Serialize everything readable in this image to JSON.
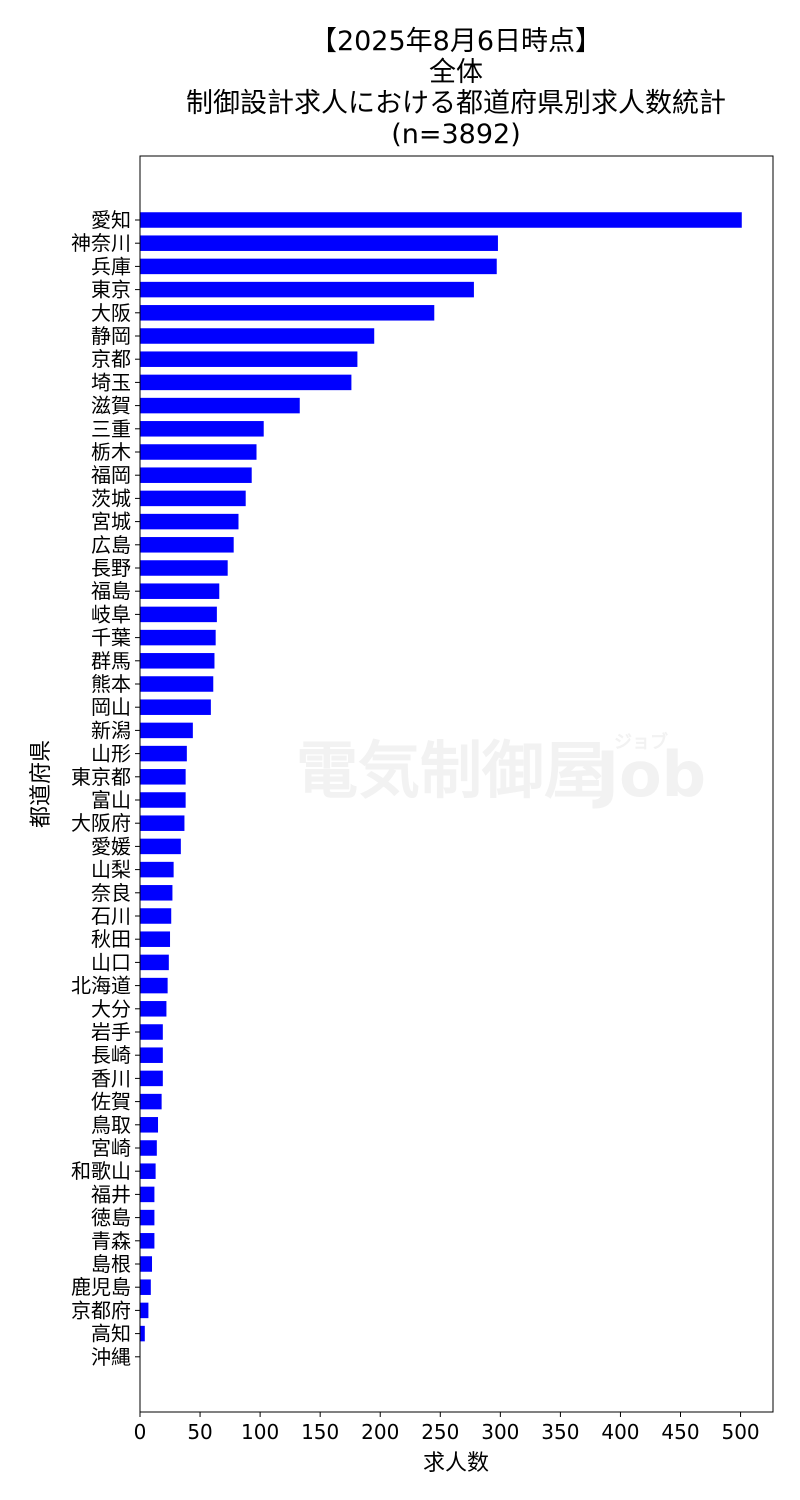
{
  "watermark": {
    "main": "電気制御屋",
    "job": "Job",
    "kana": "ジョブ"
  },
  "chart_data": {
    "type": "bar",
    "orientation": "horizontal",
    "title": [
      "【2025年8月6日時点】",
      "全体",
      "制御設計求人における都道府県別求人数統計",
      "(n=3892)"
    ],
    "xlabel": "求人数",
    "ylabel": "都道府県",
    "xlim": [
      0,
      527
    ],
    "xticks": [
      0,
      50,
      100,
      150,
      200,
      250,
      300,
      350,
      400,
      450,
      500
    ],
    "bar_color": "#0000ff",
    "grid": false,
    "categories": [
      "愛知",
      "神奈川",
      "兵庫",
      "東京",
      "大阪",
      "静岡",
      "京都",
      "埼玉",
      "滋賀",
      "三重",
      "栃木",
      "福岡",
      "茨城",
      "宮城",
      "広島",
      "長野",
      "福島",
      "岐阜",
      "千葉",
      "群馬",
      "熊本",
      "岡山",
      "新潟",
      "山形",
      "東京都",
      "富山",
      "大阪府",
      "愛媛",
      "山梨",
      "奈良",
      "石川",
      "秋田",
      "山口",
      "北海道",
      "大分",
      "岩手",
      "長崎",
      "香川",
      "佐賀",
      "鳥取",
      "宮崎",
      "和歌山",
      "福井",
      "徳島",
      "青森",
      "島根",
      "鹿児島",
      "京都府",
      "高知",
      "沖縄"
    ],
    "values": [
      501,
      298,
      297,
      278,
      245,
      195,
      181,
      176,
      133,
      103,
      97,
      93,
      88,
      82,
      78,
      73,
      66,
      64,
      63,
      62,
      61,
      59,
      44,
      39,
      38,
      38,
      37,
      34,
      28,
      27,
      26,
      25,
      24,
      23,
      22,
      19,
      19,
      19,
      18,
      15,
      14,
      13,
      12,
      12,
      12,
      10,
      9,
      7,
      4,
      0
    ]
  }
}
